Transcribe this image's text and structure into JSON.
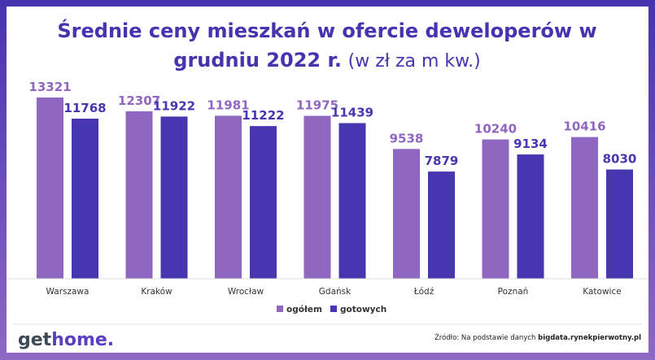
{
  "chart_data": {
    "type": "bar",
    "title_bold_line1": "Średnie ceny mieszkań w ofercie deweloperów w",
    "title_bold_line2": "grudniu 2022 r.",
    "title_light": "(w zł za m kw.)",
    "categories": [
      "Warszawa",
      "Kraków",
      "Wrocław",
      "Gdańsk",
      "Łódź",
      "Poznań",
      "Katowice"
    ],
    "series": [
      {
        "name": "ogółem",
        "color": "#8f66c0",
        "values": [
          13321,
          12307,
          11981,
          11975,
          9538,
          10240,
          10416
        ]
      },
      {
        "name": "gotowych",
        "color": "#4736b0",
        "values": [
          11768,
          11922,
          11222,
          11439,
          7879,
          9134,
          8030
        ]
      }
    ],
    "ylim": [
      0,
      13321
    ],
    "grid": false,
    "legend_position": "bottom"
  },
  "footer": {
    "logo_get": "get",
    "logo_home": "home.",
    "source_prefix": "Źródło: Na podstawie danych ",
    "source_link": "bigdata.rynekpierwotny.pl"
  }
}
